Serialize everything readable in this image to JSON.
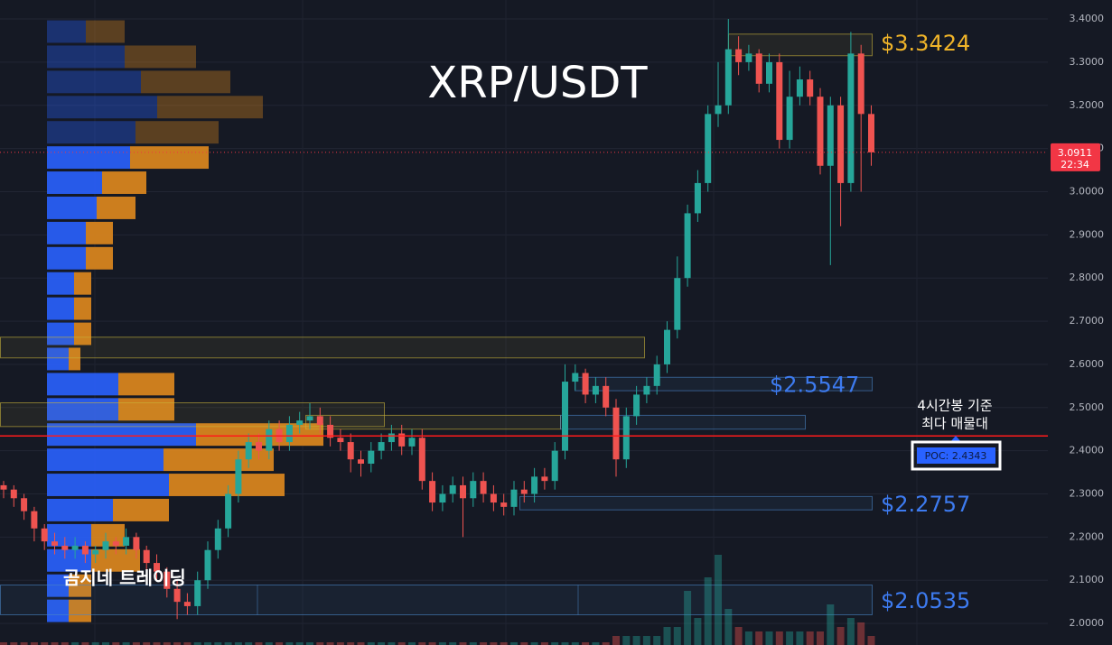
{
  "chart_data": {
    "type": "candlestick",
    "title": "XRP/USDT",
    "watermark": "곰지네 트레이딩",
    "ylim": [
      1.95,
      3.444
    ],
    "yticks": [
      {
        "value": 2.0,
        "label": "2.0000"
      },
      {
        "value": 2.1,
        "label": "2.1000"
      },
      {
        "value": 2.2,
        "label": "2.2000"
      },
      {
        "value": 2.3,
        "label": "2.3000"
      },
      {
        "value": 2.4,
        "label": "2.4000"
      },
      {
        "value": 2.5,
        "label": "2.5000"
      },
      {
        "value": 2.6,
        "label": "2.6000"
      },
      {
        "value": 2.7,
        "label": "2.7000"
      },
      {
        "value": 2.8,
        "label": "2.8000"
      },
      {
        "value": 2.9,
        "label": "2.9000"
      },
      {
        "value": 3.0,
        "label": "3.0000"
      },
      {
        "value": 3.1,
        "label": "3.1000"
      },
      {
        "value": 3.2,
        "label": "3.2000"
      },
      {
        "value": 3.3,
        "label": "3.3000"
      },
      {
        "value": 3.4,
        "label": "3.4000"
      }
    ],
    "grid": true,
    "up_color": "#26a69a",
    "down_color": "#ef5350",
    "open": [
      2.32,
      2.31,
      2.29,
      2.26,
      2.22,
      2.19,
      2.18,
      2.17,
      2.18,
      2.16,
      2.17,
      2.19,
      2.18,
      2.2,
      2.17,
      2.14,
      2.12,
      2.08,
      2.05,
      2.04,
      2.1,
      2.17,
      2.22,
      2.3,
      2.38,
      2.42,
      2.4,
      2.45,
      2.42,
      2.46,
      2.47,
      2.48,
      2.46,
      2.43,
      2.42,
      2.38,
      2.37,
      2.4,
      2.42,
      2.44,
      2.41,
      2.43,
      2.33,
      2.28,
      2.3,
      2.32,
      2.29,
      2.33,
      2.3,
      2.28,
      2.27,
      2.31,
      2.3,
      2.34,
      2.33,
      2.4,
      2.56,
      2.58,
      2.53,
      2.55,
      2.5,
      2.38,
      2.48,
      2.53,
      2.55,
      2.6,
      2.68,
      2.8,
      2.95,
      3.02,
      3.18,
      3.2,
      3.33,
      3.3,
      3.32,
      3.25,
      3.3,
      3.12,
      3.22,
      3.26,
      3.22,
      3.06,
      3.2,
      3.02,
      3.32,
      3.18
    ],
    "high": [
      2.33,
      2.32,
      2.3,
      2.27,
      2.23,
      2.21,
      2.2,
      2.2,
      2.19,
      2.18,
      2.21,
      2.2,
      2.22,
      2.21,
      2.18,
      2.16,
      2.13,
      2.1,
      2.07,
      2.12,
      2.19,
      2.24,
      2.32,
      2.4,
      2.44,
      2.44,
      2.47,
      2.47,
      2.48,
      2.49,
      2.51,
      2.5,
      2.48,
      2.45,
      2.44,
      2.4,
      2.42,
      2.44,
      2.46,
      2.46,
      2.45,
      2.45,
      2.35,
      2.32,
      2.34,
      2.34,
      2.35,
      2.35,
      2.32,
      2.3,
      2.33,
      2.33,
      2.36,
      2.36,
      2.42,
      2.6,
      2.6,
      2.59,
      2.57,
      2.57,
      2.52,
      2.5,
      2.55,
      2.57,
      2.62,
      2.7,
      2.85,
      2.97,
      3.05,
      3.2,
      3.3,
      3.4,
      3.36,
      3.34,
      3.33,
      3.32,
      3.32,
      3.28,
      3.29,
      3.28,
      3.24,
      3.22,
      3.22,
      3.37,
      3.34,
      3.2
    ],
    "low": [
      2.29,
      2.27,
      2.24,
      2.19,
      2.17,
      2.16,
      2.15,
      2.15,
      2.14,
      2.14,
      2.15,
      2.16,
      2.16,
      2.15,
      2.12,
      2.1,
      2.06,
      2.01,
      2.02,
      2.02,
      2.08,
      2.15,
      2.2,
      2.28,
      2.36,
      2.38,
      2.38,
      2.4,
      2.4,
      2.44,
      2.45,
      2.44,
      2.41,
      2.4,
      2.35,
      2.34,
      2.35,
      2.38,
      2.4,
      2.39,
      2.39,
      2.31,
      2.26,
      2.26,
      2.28,
      2.2,
      2.27,
      2.28,
      2.26,
      2.25,
      2.25,
      2.28,
      2.28,
      2.31,
      2.31,
      2.38,
      2.54,
      2.51,
      2.51,
      2.48,
      2.34,
      2.36,
      2.46,
      2.51,
      2.53,
      2.58,
      2.66,
      2.78,
      2.93,
      3.0,
      3.15,
      3.18,
      3.27,
      3.28,
      3.23,
      3.23,
      3.1,
      3.1,
      3.2,
      3.2,
      3.04,
      2.83,
      2.92,
      3.0,
      3.0,
      3.06
    ],
    "close": [
      2.31,
      2.29,
      2.26,
      2.22,
      2.19,
      2.18,
      2.17,
      2.18,
      2.16,
      2.17,
      2.19,
      2.18,
      2.2,
      2.17,
      2.14,
      2.12,
      2.08,
      2.05,
      2.04,
      2.1,
      2.17,
      2.22,
      2.3,
      2.38,
      2.42,
      2.4,
      2.45,
      2.42,
      2.46,
      2.47,
      2.48,
      2.46,
      2.43,
      2.42,
      2.38,
      2.37,
      2.4,
      2.42,
      2.44,
      2.41,
      2.43,
      2.33,
      2.28,
      2.3,
      2.32,
      2.29,
      2.33,
      2.3,
      2.28,
      2.27,
      2.31,
      2.3,
      2.34,
      2.33,
      2.4,
      2.56,
      2.58,
      2.53,
      2.55,
      2.5,
      2.38,
      2.48,
      2.53,
      2.55,
      2.6,
      2.68,
      2.8,
      2.95,
      3.02,
      3.18,
      3.2,
      3.33,
      3.3,
      3.32,
      3.25,
      3.3,
      3.12,
      3.22,
      3.26,
      3.22,
      3.06,
      3.2,
      3.02,
      3.32,
      3.18,
      3.0911
    ],
    "volume": [
      3,
      3,
      3,
      3,
      3,
      3,
      3,
      3,
      3,
      3,
      3,
      3,
      3,
      3,
      3,
      3,
      3,
      3,
      3,
      3,
      3,
      3,
      3,
      3,
      3,
      3,
      3,
      3,
      3,
      3,
      3,
      3,
      3,
      3,
      3,
      3,
      3,
      3,
      3,
      3,
      3,
      3,
      3,
      3,
      3,
      3,
      3,
      3,
      3,
      3,
      3,
      3,
      3,
      3,
      3,
      3,
      3,
      3,
      3,
      3,
      10,
      10,
      10,
      10,
      10,
      20,
      20,
      60,
      30,
      75,
      100,
      40,
      20,
      15,
      15,
      15,
      15,
      15,
      15,
      15,
      15,
      45,
      20,
      30,
      25,
      10
    ],
    "volume_lim": [
      0,
      100
    ],
    "last_price": {
      "value": 3.0911,
      "label": "3.0911",
      "countdown": "22:34"
    },
    "profile": {
      "bins": [
        2.0,
        2.0583,
        2.1167,
        2.175,
        2.2333,
        2.2917,
        2.35,
        2.4083,
        2.4667,
        2.525,
        2.5833,
        2.6417,
        2.7,
        2.7583,
        2.8167,
        2.875,
        2.9333,
        2.9917,
        3.05,
        3.1083,
        3.1667,
        3.225,
        3.2833,
        3.3417,
        3.4
      ],
      "buy": [
        24,
        24,
        49,
        49,
        73,
        135,
        129,
        165,
        79,
        79,
        24,
        30,
        30,
        30,
        43,
        43,
        55,
        61,
        92,
        98,
        122,
        104,
        86,
        43
      ],
      "sell": [
        25,
        25,
        54,
        37,
        62,
        128,
        122,
        141,
        62,
        62,
        13,
        19,
        19,
        19,
        30,
        30,
        43,
        49,
        87,
        92,
        117,
        99,
        79,
        43
      ],
      "buy_color": "#2962ff",
      "sell_color": "#e08a1e"
    },
    "poc": {
      "value": 2.4343,
      "label": "POC: 2.4343",
      "note": [
        "4시간봉 기준",
        "최다 매물대"
      ]
    },
    "zones": [
      {
        "range": [
          3.315,
          3.365
        ],
        "color": "#c9b43a",
        "label": "$3.3424"
      },
      {
        "range": [
          2.615,
          2.663
        ],
        "color": "#c9b43a"
      },
      {
        "range": [
          2.539,
          2.57
        ],
        "color": "#4a86c8",
        "label": "$2.5547"
      },
      {
        "range": [
          2.456,
          2.511
        ],
        "color": "#c9b43a"
      },
      {
        "range": [
          2.45,
          2.482
        ],
        "color": "#c9b43a"
      },
      {
        "range": [
          2.45,
          2.482
        ],
        "color": "#4a86c8"
      },
      {
        "range": [
          2.263,
          2.294
        ],
        "color": "#4a86c8",
        "label": "$2.2757"
      },
      {
        "range": [
          2.02,
          2.089
        ],
        "color": "#4a86c8",
        "label": "$2.0535"
      }
    ]
  }
}
